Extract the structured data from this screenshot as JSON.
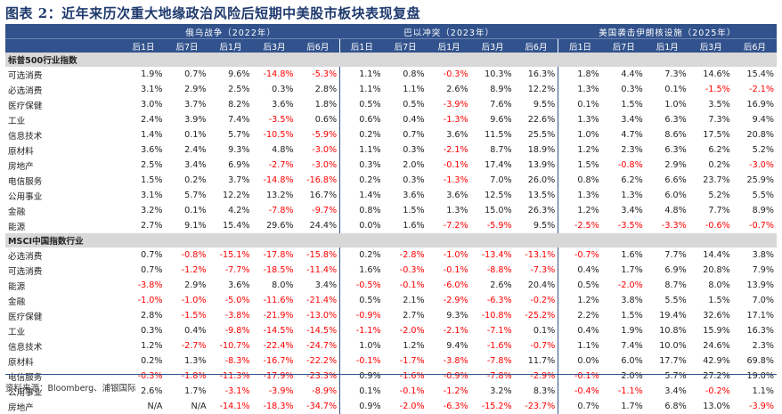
{
  "title": "图表 2：近年来历次重大地缘政治风险后短期中美股市板块表现复盘",
  "groups": [
    {
      "label": "俄乌战争（2022年）"
    },
    {
      "label": "巴以冲突（2023年）"
    },
    {
      "label": "美国袭击伊朗核设施（2025年）"
    }
  ],
  "periods": [
    "后1日",
    "后7日",
    "后1月",
    "后3月",
    "后6月"
  ],
  "sections": [
    {
      "label": "标普500行业指数",
      "rows": [
        {
          "name": "可选消费",
          "values": [
            "1.9%",
            "0.7%",
            "9.6%",
            "-14.8%",
            "-5.3%",
            "1.1%",
            "0.8%",
            "-0.3%",
            "10.3%",
            "16.3%",
            "1.8%",
            "4.4%",
            "7.3%",
            "14.6%",
            "15.4%"
          ]
        },
        {
          "name": "必选消费",
          "values": [
            "3.1%",
            "2.9%",
            "2.5%",
            "0.3%",
            "2.8%",
            "1.1%",
            "1.1%",
            "2.6%",
            "8.9%",
            "12.2%",
            "1.3%",
            "0.3%",
            "0.1%",
            "-1.5%",
            "-2.1%"
          ]
        },
        {
          "name": "医疗保健",
          "values": [
            "3.0%",
            "3.7%",
            "8.2%",
            "3.6%",
            "1.8%",
            "0.5%",
            "0.5%",
            "-3.9%",
            "7.6%",
            "9.5%",
            "0.1%",
            "1.5%",
            "1.0%",
            "3.5%",
            "16.9%"
          ]
        },
        {
          "name": "工业",
          "values": [
            "2.4%",
            "3.9%",
            "7.4%",
            "-3.5%",
            "0.6%",
            "0.6%",
            "0.4%",
            "-1.3%",
            "9.6%",
            "22.6%",
            "1.3%",
            "3.4%",
            "6.3%",
            "7.3%",
            "9.4%"
          ]
        },
        {
          "name": "信息技术",
          "values": [
            "1.4%",
            "0.1%",
            "5.7%",
            "-10.5%",
            "-5.9%",
            "0.2%",
            "0.7%",
            "3.6%",
            "11.5%",
            "25.5%",
            "1.0%",
            "4.7%",
            "8.6%",
            "17.5%",
            "20.8%"
          ]
        },
        {
          "name": "原材料",
          "values": [
            "3.6%",
            "2.4%",
            "9.3%",
            "4.8%",
            "-3.0%",
            "1.1%",
            "0.3%",
            "-2.1%",
            "8.7%",
            "18.9%",
            "1.2%",
            "2.3%",
            "6.3%",
            "6.2%",
            "5.2%"
          ]
        },
        {
          "name": "房地产",
          "values": [
            "2.5%",
            "3.4%",
            "6.9%",
            "-2.7%",
            "-3.0%",
            "0.3%",
            "2.0%",
            "-0.1%",
            "17.4%",
            "13.9%",
            "1.5%",
            "-0.8%",
            "2.9%",
            "0.2%",
            "-3.0%"
          ]
        },
        {
          "name": "电信服务",
          "values": [
            "1.5%",
            "0.2%",
            "3.7%",
            "-14.8%",
            "-16.8%",
            "0.2%",
            "0.3%",
            "-1.3%",
            "7.0%",
            "26.0%",
            "0.8%",
            "6.2%",
            "6.6%",
            "23.7%",
            "25.9%"
          ]
        },
        {
          "name": "公用事业",
          "values": [
            "3.1%",
            "5.7%",
            "12.2%",
            "13.2%",
            "16.7%",
            "1.4%",
            "3.6%",
            "3.6%",
            "12.5%",
            "13.5%",
            "1.3%",
            "1.3%",
            "6.0%",
            "5.2%",
            "5.5%"
          ]
        },
        {
          "name": "金融",
          "values": [
            "3.2%",
            "0.1%",
            "4.2%",
            "-7.8%",
            "-9.7%",
            "0.8%",
            "1.5%",
            "1.3%",
            "15.0%",
            "26.3%",
            "1.2%",
            "3.4%",
            "4.8%",
            "7.7%",
            "8.9%"
          ]
        },
        {
          "name": "能源",
          "values": [
            "2.7%",
            "9.1%",
            "15.4%",
            "29.6%",
            "24.4%",
            "0.0%",
            "1.6%",
            "-7.2%",
            "-5.9%",
            "9.5%",
            "-2.5%",
            "-3.5%",
            "-3.3%",
            "-0.6%",
            "-0.7%"
          ]
        }
      ]
    },
    {
      "label": "MSCI中国指数行业",
      "rows": [
        {
          "name": "必选消费",
          "values": [
            "0.7%",
            "-0.8%",
            "-15.1%",
            "-17.8%",
            "-15.8%",
            "0.2%",
            "-2.8%",
            "-1.0%",
            "-13.4%",
            "-13.1%",
            "-0.7%",
            "1.6%",
            "7.7%",
            "14.4%",
            "3.8%"
          ]
        },
        {
          "name": "可选消费",
          "values": [
            "0.7%",
            "-1.2%",
            "-7.7%",
            "-18.5%",
            "-11.4%",
            "1.6%",
            "-0.3%",
            "-0.1%",
            "-8.8%",
            "-7.3%",
            "0.4%",
            "1.7%",
            "6.9%",
            "20.8%",
            "7.9%"
          ]
        },
        {
          "name": "能源",
          "values": [
            "-3.8%",
            "2.9%",
            "3.6%",
            "8.0%",
            "3.4%",
            "-0.5%",
            "-0.1%",
            "-6.0%",
            "2.6%",
            "20.4%",
            "0.5%",
            "-2.0%",
            "8.7%",
            "8.0%",
            "13.9%"
          ]
        },
        {
          "name": "金融",
          "values": [
            "-1.0%",
            "-1.0%",
            "-5.0%",
            "-11.6%",
            "-21.4%",
            "0.5%",
            "2.1%",
            "-2.9%",
            "-6.3%",
            "-0.2%",
            "1.2%",
            "3.8%",
            "5.5%",
            "1.5%",
            "7.0%"
          ]
        },
        {
          "name": "医疗保健",
          "values": [
            "2.8%",
            "-1.5%",
            "-3.8%",
            "-21.9%",
            "-13.0%",
            "-0.9%",
            "2.7%",
            "9.3%",
            "-10.8%",
            "-25.2%",
            "2.2%",
            "1.5%",
            "19.4%",
            "32.6%",
            "17.1%"
          ]
        },
        {
          "name": "工业",
          "values": [
            "0.3%",
            "0.4%",
            "-9.8%",
            "-14.5%",
            "-14.5%",
            "-1.1%",
            "-2.0%",
            "-2.1%",
            "-7.1%",
            "0.1%",
            "0.4%",
            "1.9%",
            "10.8%",
            "15.9%",
            "16.3%"
          ]
        },
        {
          "name": "信息技术",
          "values": [
            "1.2%",
            "-2.7%",
            "-10.7%",
            "-22.4%",
            "-24.7%",
            "1.0%",
            "1.2%",
            "9.4%",
            "-1.6%",
            "-0.7%",
            "1.1%",
            "7.4%",
            "10.0%",
            "24.6%",
            "2.3%"
          ]
        },
        {
          "name": "原材料",
          "values": [
            "0.2%",
            "1.3%",
            "-8.3%",
            "-16.7%",
            "-22.2%",
            "-0.1%",
            "-1.7%",
            "-3.8%",
            "-7.8%",
            "11.7%",
            "0.0%",
            "6.0%",
            "17.7%",
            "42.9%",
            "69.8%"
          ]
        },
        {
          "name": "电信服务",
          "values": [
            "-0.3%",
            "-1.8%",
            "-11.3%",
            "-17.9%",
            "-23.3%",
            "0.9%",
            "-1.6%",
            "-0.9%",
            "-7.8%",
            "-2.9%",
            "-0.1%",
            "2.0%",
            "5.7%",
            "27.2%",
            "19.0%"
          ]
        },
        {
          "name": "公用事业",
          "values": [
            "2.6%",
            "1.7%",
            "-3.1%",
            "-3.9%",
            "-8.9%",
            "0.1%",
            "-0.1%",
            "-1.2%",
            "3.2%",
            "8.3%",
            "-0.4%",
            "-1.1%",
            "3.4%",
            "-0.2%",
            "1.1%"
          ]
        },
        {
          "name": "房地产",
          "values": [
            "N/A",
            "N/A",
            "-14.1%",
            "-18.3%",
            "-34.7%",
            "0.9%",
            "-2.0%",
            "-6.3%",
            "-15.2%",
            "-23.7%",
            "0.7%",
            "1.7%",
            "6.8%",
            "13.0%",
            "-3.9%"
          ]
        }
      ]
    }
  ],
  "source": "资料来源：Bloomberg、浦银国际",
  "colors": {
    "header_bg": "#31528c",
    "section_bg": "#d8d8d8",
    "negative": "#ff0000",
    "title": "#1f3a6e"
  }
}
